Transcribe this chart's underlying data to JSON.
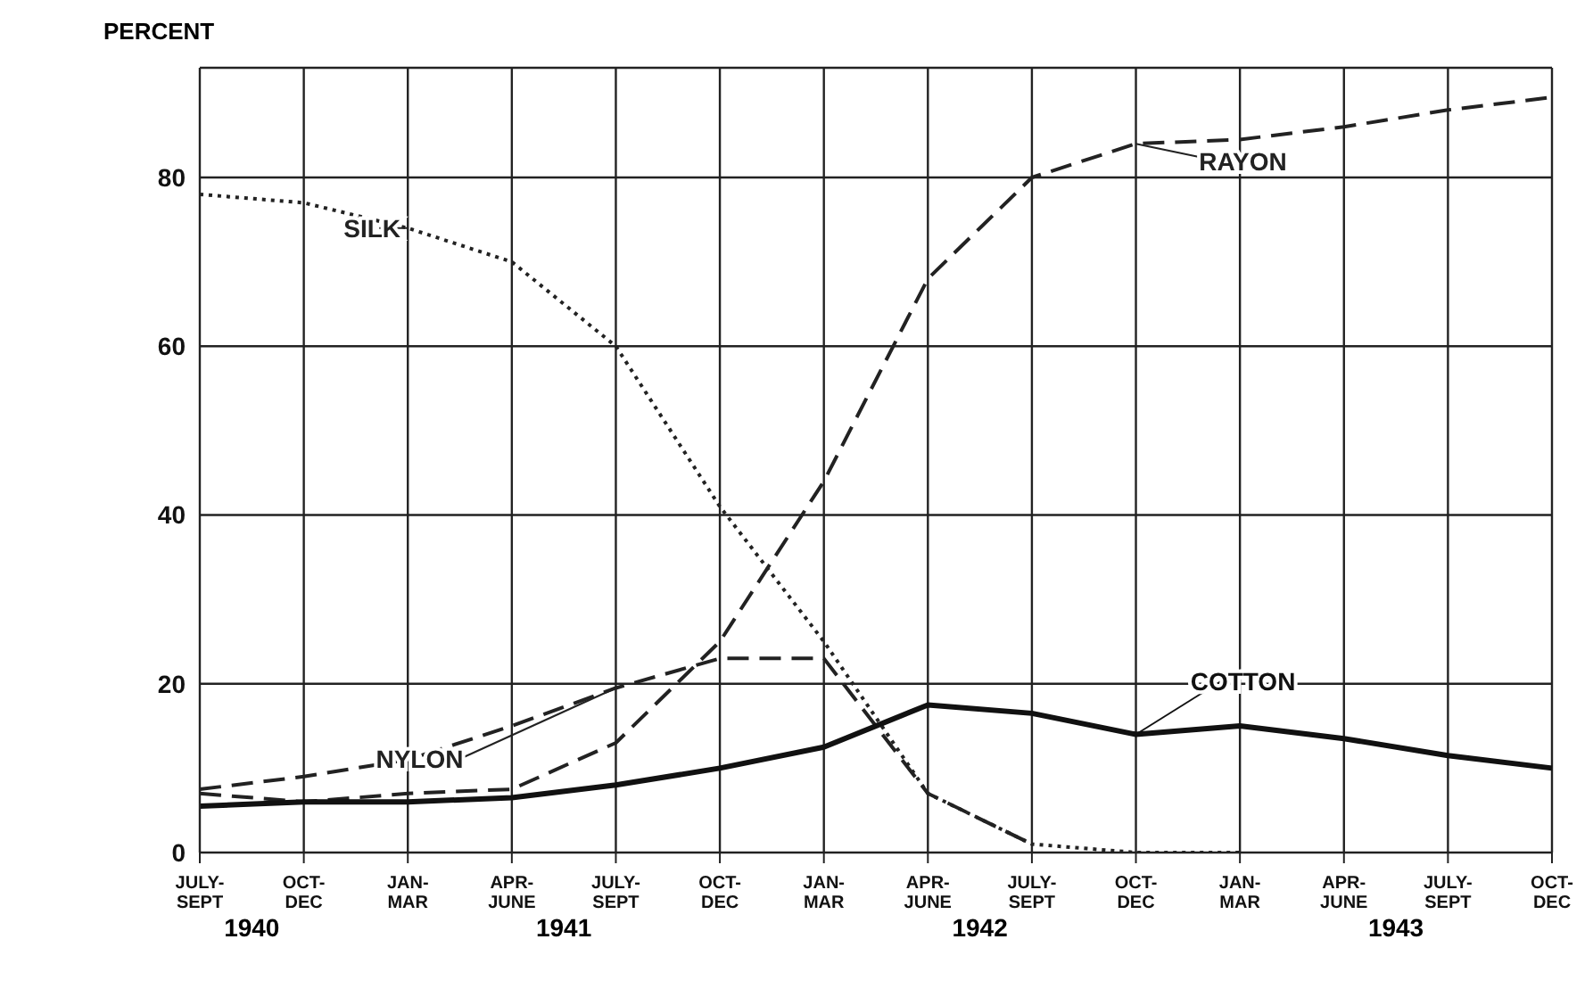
{
  "chart_data": {
    "type": "line",
    "ylabel": "PERCENT",
    "categories": [
      "JULY-SEPT",
      "OCT-DEC",
      "JAN-MAR",
      "APR-JUNE",
      "JULY-SEPT",
      "OCT-DEC",
      "JAN-MAR",
      "APR-JUNE",
      "JULY-SEPT",
      "OCT-DEC",
      "JAN-MAR",
      "APR-JUNE",
      "JULY-SEPT",
      "OCT-DEC"
    ],
    "series": [
      {
        "name": "SILK",
        "color": "#222222",
        "line_style": "dotted",
        "values": [
          78,
          77,
          74,
          70,
          60,
          41,
          25,
          7,
          1,
          0,
          0,
          null,
          null,
          null
        ]
      },
      {
        "name": "RAYON",
        "color": "#222222",
        "line_style": "dashed",
        "values": [
          7,
          6,
          7,
          7.5,
          13,
          25,
          44,
          68,
          80,
          84,
          84.5,
          86,
          88,
          89.5
        ]
      },
      {
        "name": "NYLON",
        "color": "#222222",
        "line_style": "dashed",
        "values": [
          7.5,
          9,
          11,
          15,
          19.5,
          23,
          23,
          7,
          1,
          null,
          null,
          null,
          null,
          null
        ]
      },
      {
        "name": "COTTON",
        "color": "#111111",
        "line_style": "solid",
        "values": [
          5.5,
          6,
          6,
          6.5,
          8,
          10,
          12.5,
          17.5,
          16.5,
          14,
          15,
          13.5,
          11.5,
          10
        ]
      }
    ],
    "ylim": [
      0,
      93
    ],
    "yticks": [
      0,
      20,
      40,
      60,
      80
    ],
    "grid": true,
    "marker": "none",
    "annotations": [
      "1940",
      "1941",
      "1942",
      "1943"
    ]
  }
}
